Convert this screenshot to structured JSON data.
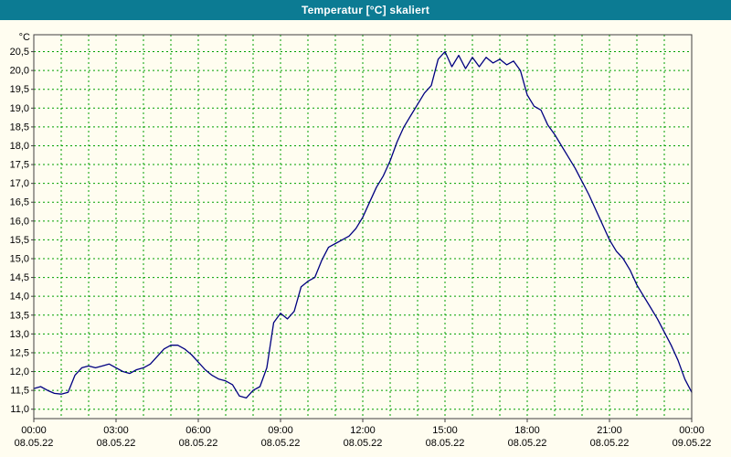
{
  "window": {
    "title": "Temperatur [°C] skaliert"
  },
  "colors": {
    "title_bar": "#0c7b93",
    "title_text": "#ffffff",
    "background": "#fffdf0",
    "plot_background": "#fffdf0",
    "grid": "#00a000",
    "line": "#000080",
    "border": "#404040",
    "axis_text": "#000000"
  },
  "chart_data": {
    "type": "line",
    "title": "Temperatur [°C] skaliert",
    "y_unit": "°C",
    "xlabel": "",
    "ylabel": "°C",
    "xlim_hours": [
      0,
      24
    ],
    "ylim": [
      10.75,
      20.95
    ],
    "grid": "on, dashed green, vertical every 1 hour, horizontal every 0.5 °C",
    "legend": "none",
    "x_start_hour": 0,
    "x_step_hour": 0.25,
    "values": [
      11.55,
      11.6,
      11.5,
      11.42,
      11.4,
      11.45,
      11.9,
      12.1,
      12.15,
      12.1,
      12.15,
      12.2,
      12.1,
      12.0,
      11.95,
      12.05,
      12.1,
      12.2,
      12.4,
      12.6,
      12.7,
      12.7,
      12.6,
      12.45,
      12.25,
      12.05,
      11.9,
      11.8,
      11.75,
      11.65,
      11.35,
      11.3,
      11.5,
      11.6,
      12.1,
      13.3,
      13.55,
      13.4,
      13.6,
      14.25,
      14.4,
      14.5,
      14.95,
      15.3,
      15.4,
      15.5,
      15.6,
      15.8,
      16.1,
      16.5,
      16.9,
      17.2,
      17.6,
      18.1,
      18.5,
      18.8,
      19.1,
      19.4,
      19.6,
      20.3,
      20.5,
      20.1,
      20.4,
      20.05,
      20.35,
      20.1,
      20.35,
      20.2,
      20.3,
      20.15,
      20.25,
      20.0,
      19.35,
      19.05,
      18.95,
      18.55,
      18.3,
      18.0,
      17.7,
      17.4,
      17.05,
      16.7,
      16.3,
      15.9,
      15.5,
      15.2,
      15.0,
      14.7,
      14.3,
      14.0,
      13.7,
      13.4,
      13.05,
      12.7,
      12.3,
      11.8,
      11.45
    ],
    "y_ticks": [
      "11,0",
      "11,5",
      "12,0",
      "12,5",
      "13,0",
      "13,5",
      "14,0",
      "14,5",
      "15,0",
      "15,5",
      "16,0",
      "16,5",
      "17,0",
      "17,5",
      "18,0",
      "18,5",
      "19,0",
      "19,5",
      "20,0",
      "20,5"
    ],
    "x_ticks": [
      {
        "hour": 0,
        "time": "00:00",
        "date": "08.05.22"
      },
      {
        "hour": 3,
        "time": "03:00",
        "date": "08.05.22"
      },
      {
        "hour": 6,
        "time": "06:00",
        "date": "08.05.22"
      },
      {
        "hour": 9,
        "time": "09:00",
        "date": "08.05.22"
      },
      {
        "hour": 12,
        "time": "12:00",
        "date": "08.05.22"
      },
      {
        "hour": 15,
        "time": "15:00",
        "date": "08.05.22"
      },
      {
        "hour": 18,
        "time": "18:00",
        "date": "08.05.22"
      },
      {
        "hour": 21,
        "time": "21:00",
        "date": "08.05.22"
      },
      {
        "hour": 24,
        "time": "00:00",
        "date": "09.05.22"
      }
    ]
  }
}
